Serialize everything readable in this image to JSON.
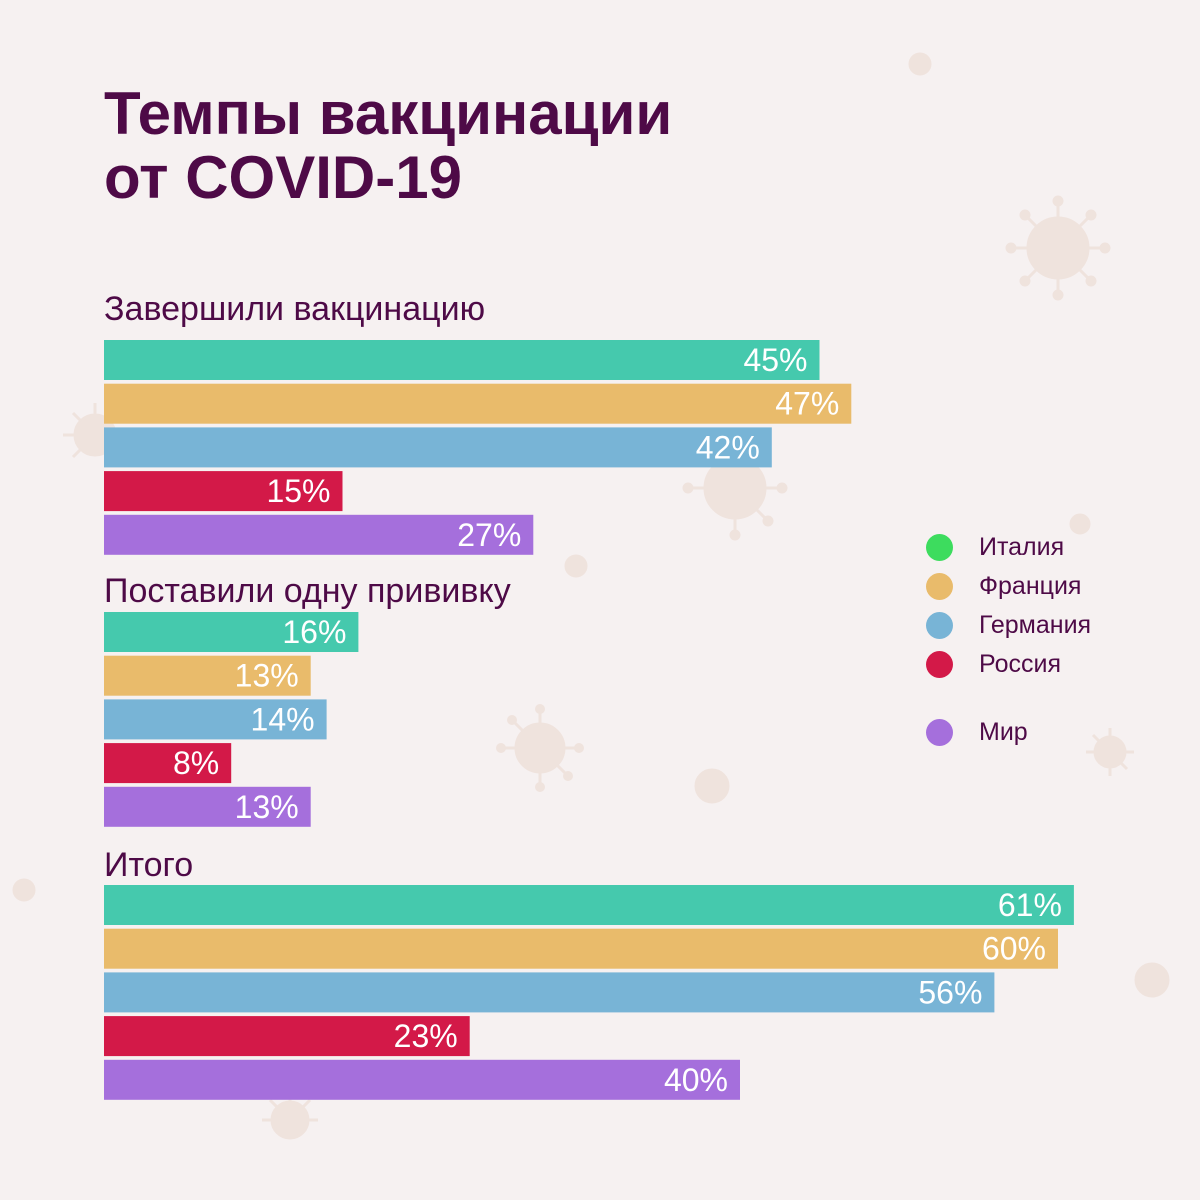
{
  "header": {
    "title_line1": "Темпы вакцинации",
    "title_line2": "от COVID-19"
  },
  "colors": {
    "background": "#f6f1f1",
    "text": "#4e0a47",
    "decor": "#efe1db"
  },
  "legend": [
    {
      "label": "Италия",
      "color": "#3ddc5e"
    },
    {
      "label": "Франция",
      "color": "#e9bb6b"
    },
    {
      "label": "Германия",
      "color": "#78b4d6"
    },
    {
      "label": "Россия",
      "color": "#d31948"
    },
    {
      "label": "Мир",
      "color": "#a56fdc"
    }
  ],
  "chart_data": {
    "type": "bar",
    "orientation": "horizontal",
    "title": "Темпы вакцинации от COVID-19",
    "unit": "%",
    "xlim": [
      0,
      100
    ],
    "grid": false,
    "legend_position": "right",
    "series_colors": [
      "#45c9ad",
      "#e9bb6b",
      "#78b4d6",
      "#d31948",
      "#a56fdc"
    ],
    "groups": [
      {
        "label": "Завершили вакцинацию",
        "values": [
          45,
          47,
          42,
          15,
          27
        ],
        "labels": [
          "45%",
          "47%",
          "42%",
          "15%",
          "27%"
        ]
      },
      {
        "label": "Поставили одну прививку",
        "values": [
          16,
          13,
          14,
          8,
          13
        ],
        "labels": [
          "16%",
          "13%",
          "14%",
          "8%",
          "13%"
        ]
      },
      {
        "label": "Итого",
        "values": [
          61,
          60,
          56,
          23,
          40
        ],
        "labels": [
          "61%",
          "60%",
          "56%",
          "23%",
          "40%"
        ]
      }
    ]
  }
}
